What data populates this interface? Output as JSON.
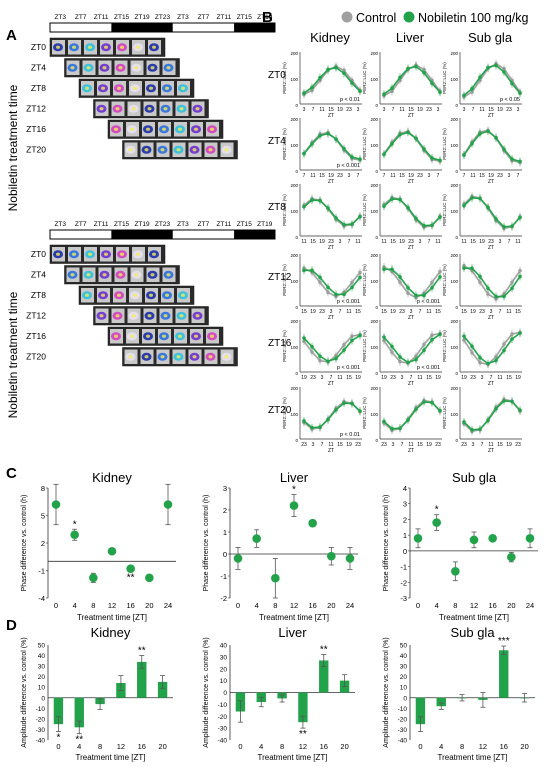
{
  "panels": {
    "A": "A",
    "B": "B",
    "C": "C",
    "D": "D"
  },
  "colors": {
    "control": "#a0a0a0",
    "nobiletin": "#22a34a",
    "axis": "#333333"
  },
  "panel_a": {
    "zt_axis": [
      "ZT3",
      "ZT7",
      "ZT11",
      "ZT15",
      "ZT19",
      "ZT23",
      "ZT3",
      "ZT7",
      "ZT11",
      "ZT15",
      "ZT19"
    ],
    "rows": [
      "ZT0",
      "ZT4",
      "ZT8",
      "ZT12",
      "ZT16",
      "ZT20"
    ],
    "side_label": "Nobiletin treatment time"
  },
  "panel_b": {
    "legend": {
      "control": "Control",
      "nobiletin": "Nobiletin 100 mg/kg"
    },
    "columns": [
      "Kidney",
      "Liver",
      "Sub gla"
    ],
    "row_labels": [
      "ZT0",
      "ZT4",
      "ZT8",
      "ZT12",
      "ZT16",
      "ZT20"
    ],
    "ylabel": "PER2::LUC (%)",
    "xlabel": "ZT",
    "p_labels": [
      "p < 0.01",
      "p < 0.05",
      "p < 0.001",
      "p < 0.001",
      "p < 0.001",
      "p < 0.001",
      "p < 0.001",
      "p < 0.001",
      "p < 0.01"
    ]
  },
  "panel_c": {
    "xlabel": "Treatment time [ZT]",
    "ylabel": "Phase difference vs. control (h)"
  },
  "panel_d": {
    "xlabel": "Treatment time [ZT]",
    "ylabel": "Amplitude difference vs. control (%)"
  },
  "chart_data": [
    {
      "type": "scatter",
      "title": "Kidney",
      "x": [
        0,
        4,
        8,
        12,
        16,
        20,
        24
      ],
      "y": [
        6.2,
        2.9,
        -1.8,
        1.1,
        -0.8,
        -1.8,
        6.2
      ],
      "error": [
        2.2,
        0.6,
        0.5,
        0.3,
        0.3,
        0.2,
        2.2
      ],
      "annotations": [
        "",
        "*",
        "",
        "",
        "**",
        "",
        ""
      ],
      "xlabel": "Treatment time [ZT]",
      "ylabel": "Phase difference vs. control (h)",
      "ylim": [
        -4,
        8
      ],
      "yticks": [
        -4,
        -1,
        2,
        5,
        8
      ],
      "xticks": [
        0,
        4,
        8,
        12,
        16,
        20,
        24
      ]
    },
    {
      "type": "scatter",
      "title": "Liver",
      "x": [
        0,
        4,
        8,
        12,
        16,
        20,
        24
      ],
      "y": [
        -0.2,
        0.7,
        -1.1,
        2.2,
        1.4,
        -0.1,
        -0.2
      ],
      "error": [
        0.5,
        0.4,
        0.9,
        0.5,
        0.15,
        0.4,
        0.5
      ],
      "annotations": [
        "",
        "",
        "",
        "*",
        "",
        "",
        ""
      ],
      "xlabel": "Treatment time [ZT]",
      "ylabel": "Phase difference vs. control (h)",
      "ylim": [
        -2,
        3
      ],
      "yticks": [
        -2,
        -1,
        0,
        1,
        2,
        3
      ],
      "xticks": [
        0,
        4,
        8,
        12,
        16,
        20,
        24
      ]
    },
    {
      "type": "scatter",
      "title": "Sub gla",
      "x": [
        0,
        4,
        8,
        12,
        16,
        20,
        24
      ],
      "y": [
        0.8,
        1.8,
        -1.3,
        0.7,
        0.8,
        -0.4,
        0.8
      ],
      "error": [
        0.6,
        0.5,
        0.6,
        0.5,
        0.1,
        0.3,
        0.6
      ],
      "annotations": [
        "",
        "*",
        "",
        "",
        "",
        "",
        ""
      ],
      "xlabel": "Treatment time [ZT]",
      "ylabel": "Phase difference vs. control (h)",
      "ylim": [
        -3,
        4
      ],
      "yticks": [
        -3,
        -2,
        -1,
        0,
        1,
        2,
        3,
        4
      ],
      "xticks": [
        0,
        4,
        8,
        12,
        16,
        20,
        24
      ]
    },
    {
      "type": "bar",
      "title": "Kidney",
      "categories": [
        "0",
        "4",
        "8",
        "12",
        "16",
        "20"
      ],
      "values": [
        -25,
        -28,
        -6,
        14,
        34,
        15
      ],
      "error": [
        7,
        6,
        5,
        7,
        6,
        6
      ],
      "annotations": [
        "*",
        "**",
        "",
        "",
        "**",
        ""
      ],
      "xlabel": "Treatment time [ZT]",
      "ylabel": "Amplitude difference vs. control (%)",
      "ylim": [
        -40,
        50
      ],
      "yticks": [
        -40,
        -30,
        -20,
        -10,
        0,
        10,
        20,
        30,
        40,
        50
      ]
    },
    {
      "type": "bar",
      "title": "Liver",
      "categories": [
        "0",
        "4",
        "8",
        "12",
        "16",
        "20"
      ],
      "values": [
        -16,
        -8,
        -5,
        -25,
        27,
        10
      ],
      "error": [
        9,
        4,
        3,
        5,
        5,
        5
      ],
      "annotations": [
        "",
        "",
        "",
        "**",
        "**",
        ""
      ],
      "xlabel": "Treatment time [ZT]",
      "ylabel": "Amplitude difference vs. control (%)",
      "ylim": [
        -40,
        40
      ],
      "yticks": [
        -40,
        -30,
        -20,
        -10,
        0,
        10,
        20,
        30,
        40
      ]
    },
    {
      "type": "bar",
      "title": "Sub gla",
      "categories": [
        "0",
        "4",
        "8",
        "12",
        "16",
        "20"
      ],
      "values": [
        -25,
        -8,
        0,
        -2,
        45,
        0
      ],
      "error": [
        7,
        3,
        3,
        7,
        4,
        4
      ],
      "annotations": [
        "",
        "",
        "",
        "",
        "***",
        ""
      ],
      "xlabel": "Treatment time [ZT]",
      "ylabel": "Amplitude difference vs. control (%)",
      "ylim": [
        -40,
        50
      ],
      "yticks": [
        -40,
        -30,
        -20,
        -10,
        0,
        10,
        20,
        30,
        40,
        50
      ]
    }
  ]
}
